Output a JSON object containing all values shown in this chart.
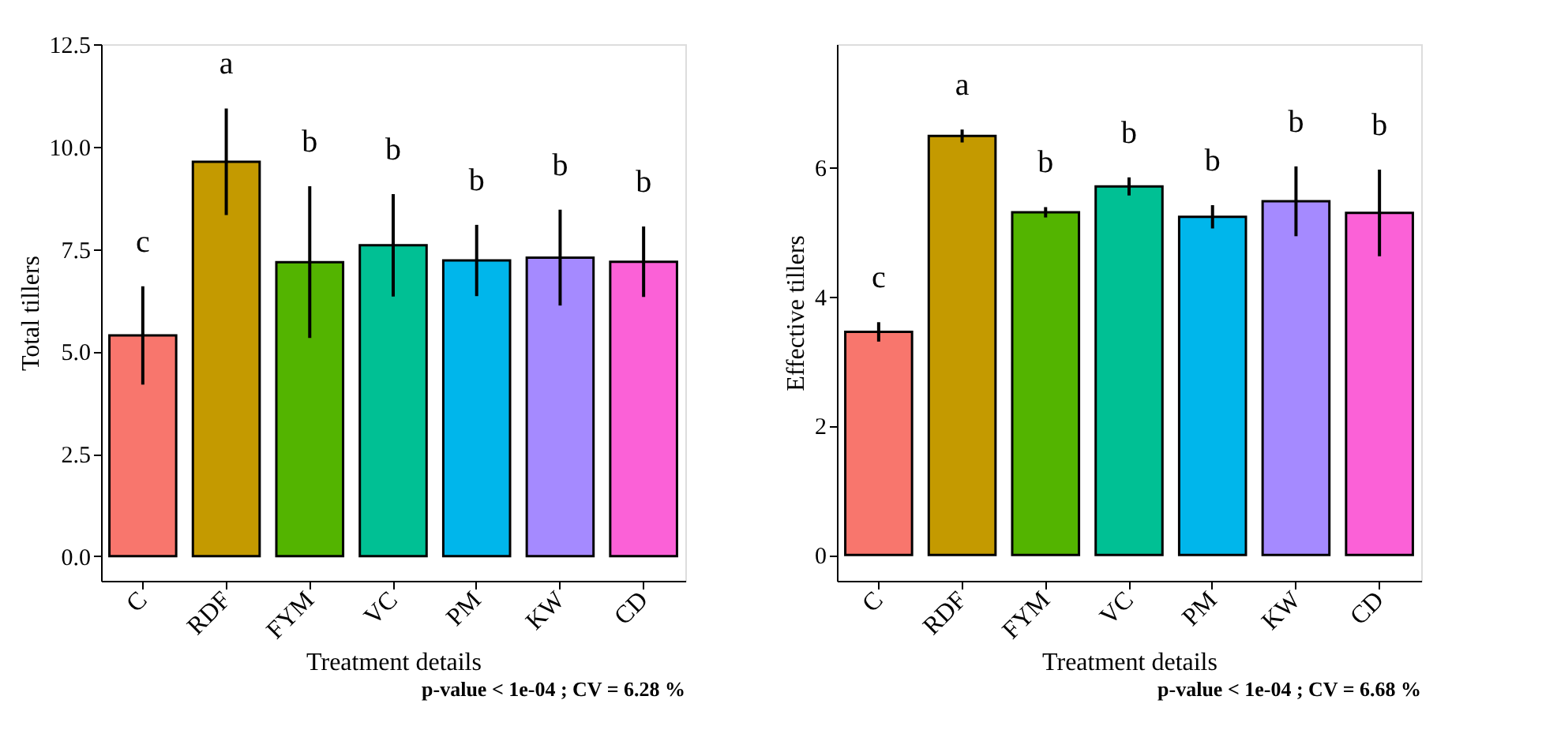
{
  "chart_data": [
    {
      "type": "bar",
      "xlabel": "Treatment details",
      "ylabel": "Total tillers",
      "categories": [
        "C",
        "RDF",
        "FYM",
        "VC",
        "PM",
        "KW",
        "CD"
      ],
      "values": [
        5.39,
        9.63,
        7.18,
        7.59,
        7.22,
        7.29,
        7.19
      ],
      "errors": [
        1.2,
        1.3,
        1.85,
        1.25,
        0.87,
        1.17,
        0.86
      ],
      "colors": [
        "#f8766d",
        "#c49a00",
        "#53b400",
        "#00c094",
        "#00b6eb",
        "#a58aff",
        "#fb61d7"
      ],
      "ylim": [
        -0.6,
        12.5
      ],
      "yticks": [
        {
          "value": 0,
          "label": "0.0"
        },
        {
          "value": 2.5,
          "label": "2.5"
        },
        {
          "value": 5,
          "label": "5.0"
        },
        {
          "value": 7.5,
          "label": "7.5"
        },
        {
          "value": 10,
          "label": "10.0"
        },
        {
          "value": 12.5,
          "label": "12.5"
        }
      ],
      "grid": false,
      "annotations": [
        "c",
        "a",
        "b",
        "b",
        "b",
        "b",
        "b",
        "p-value < 1e-04 ; CV =  6.28 %"
      ]
    },
    {
      "type": "bar",
      "xlabel": "Treatment details",
      "ylabel": "Effective tillers",
      "categories": [
        "C",
        "RDF",
        "FYM",
        "VC",
        "PM",
        "KW",
        "CD"
      ],
      "values": [
        3.45,
        6.48,
        5.3,
        5.7,
        5.23,
        5.47,
        5.29
      ],
      "errors": [
        0.15,
        0.1,
        0.08,
        0.14,
        0.18,
        0.54,
        0.67
      ],
      "colors": [
        "#f8766d",
        "#c49a00",
        "#53b400",
        "#00c094",
        "#00b6eb",
        "#a58aff",
        "#fb61d7"
      ],
      "ylim": [
        -0.4,
        7.9
      ],
      "yticks": [
        0,
        2,
        4,
        6
      ],
      "grid": false,
      "annotations": [
        "c",
        "a",
        "b",
        "b",
        "b",
        "b",
        "b",
        "p-value < 1e-04 ; CV =  6.68 %"
      ]
    }
  ]
}
